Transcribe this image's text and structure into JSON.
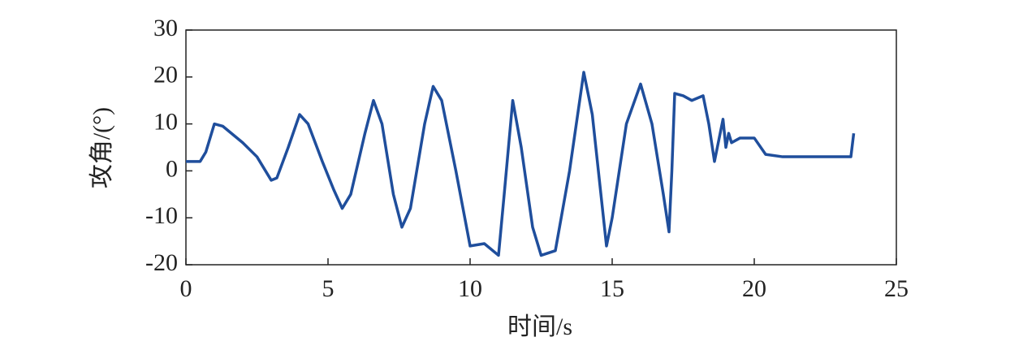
{
  "chart_data": {
    "type": "line",
    "xlabel": "时间/s",
    "ylabel": "攻角/(°)",
    "xlim": [
      0,
      25
    ],
    "xticks": [
      0,
      5,
      10,
      15,
      20,
      25
    ],
    "ylim": [
      -20,
      30
    ],
    "yticks": [
      -20,
      -10,
      0,
      10,
      20,
      30
    ],
    "series": [
      {
        "color": "#1f4e9c",
        "x": [
          0,
          0.5,
          0.7,
          1.0,
          1.3,
          2,
          2.5,
          3.0,
          3.2,
          3.6,
          4.0,
          4.3,
          4.8,
          5.2,
          5.5,
          5.8,
          6.3,
          6.6,
          6.9,
          7.3,
          7.6,
          7.9,
          8.4,
          8.7,
          9.0,
          9.5,
          10.0,
          10.5,
          11.0,
          11.2,
          11.5,
          11.8,
          12.2,
          12.5,
          13.0,
          13.5,
          14.0,
          14.3,
          14.8,
          15.0,
          15.5,
          16.0,
          16.4,
          16.8,
          17.0,
          17.1,
          17.2,
          17.5,
          17.8,
          18.2,
          18.4,
          18.6,
          18.9,
          19.0,
          19.1,
          19.2,
          19.5,
          20.0,
          20.4,
          21.0,
          22.0,
          23.4,
          23.5
        ],
        "values": [
          2,
          2,
          4,
          10,
          9.5,
          6,
          3,
          -2,
          -1.5,
          5,
          12,
          10,
          2,
          -4,
          -8,
          -5,
          8,
          15,
          10,
          -5,
          -12,
          -8,
          10,
          18,
          15,
          0,
          -16,
          -15.5,
          -18,
          -5,
          15,
          5,
          -12,
          -18,
          -17,
          0,
          21,
          12,
          -16,
          -10,
          10,
          18.5,
          10,
          -5,
          -13,
          0,
          16.5,
          16,
          15,
          16,
          10,
          2,
          11,
          5,
          8,
          6,
          7,
          7,
          3.5,
          3,
          3,
          3,
          8
        ]
      }
    ]
  }
}
